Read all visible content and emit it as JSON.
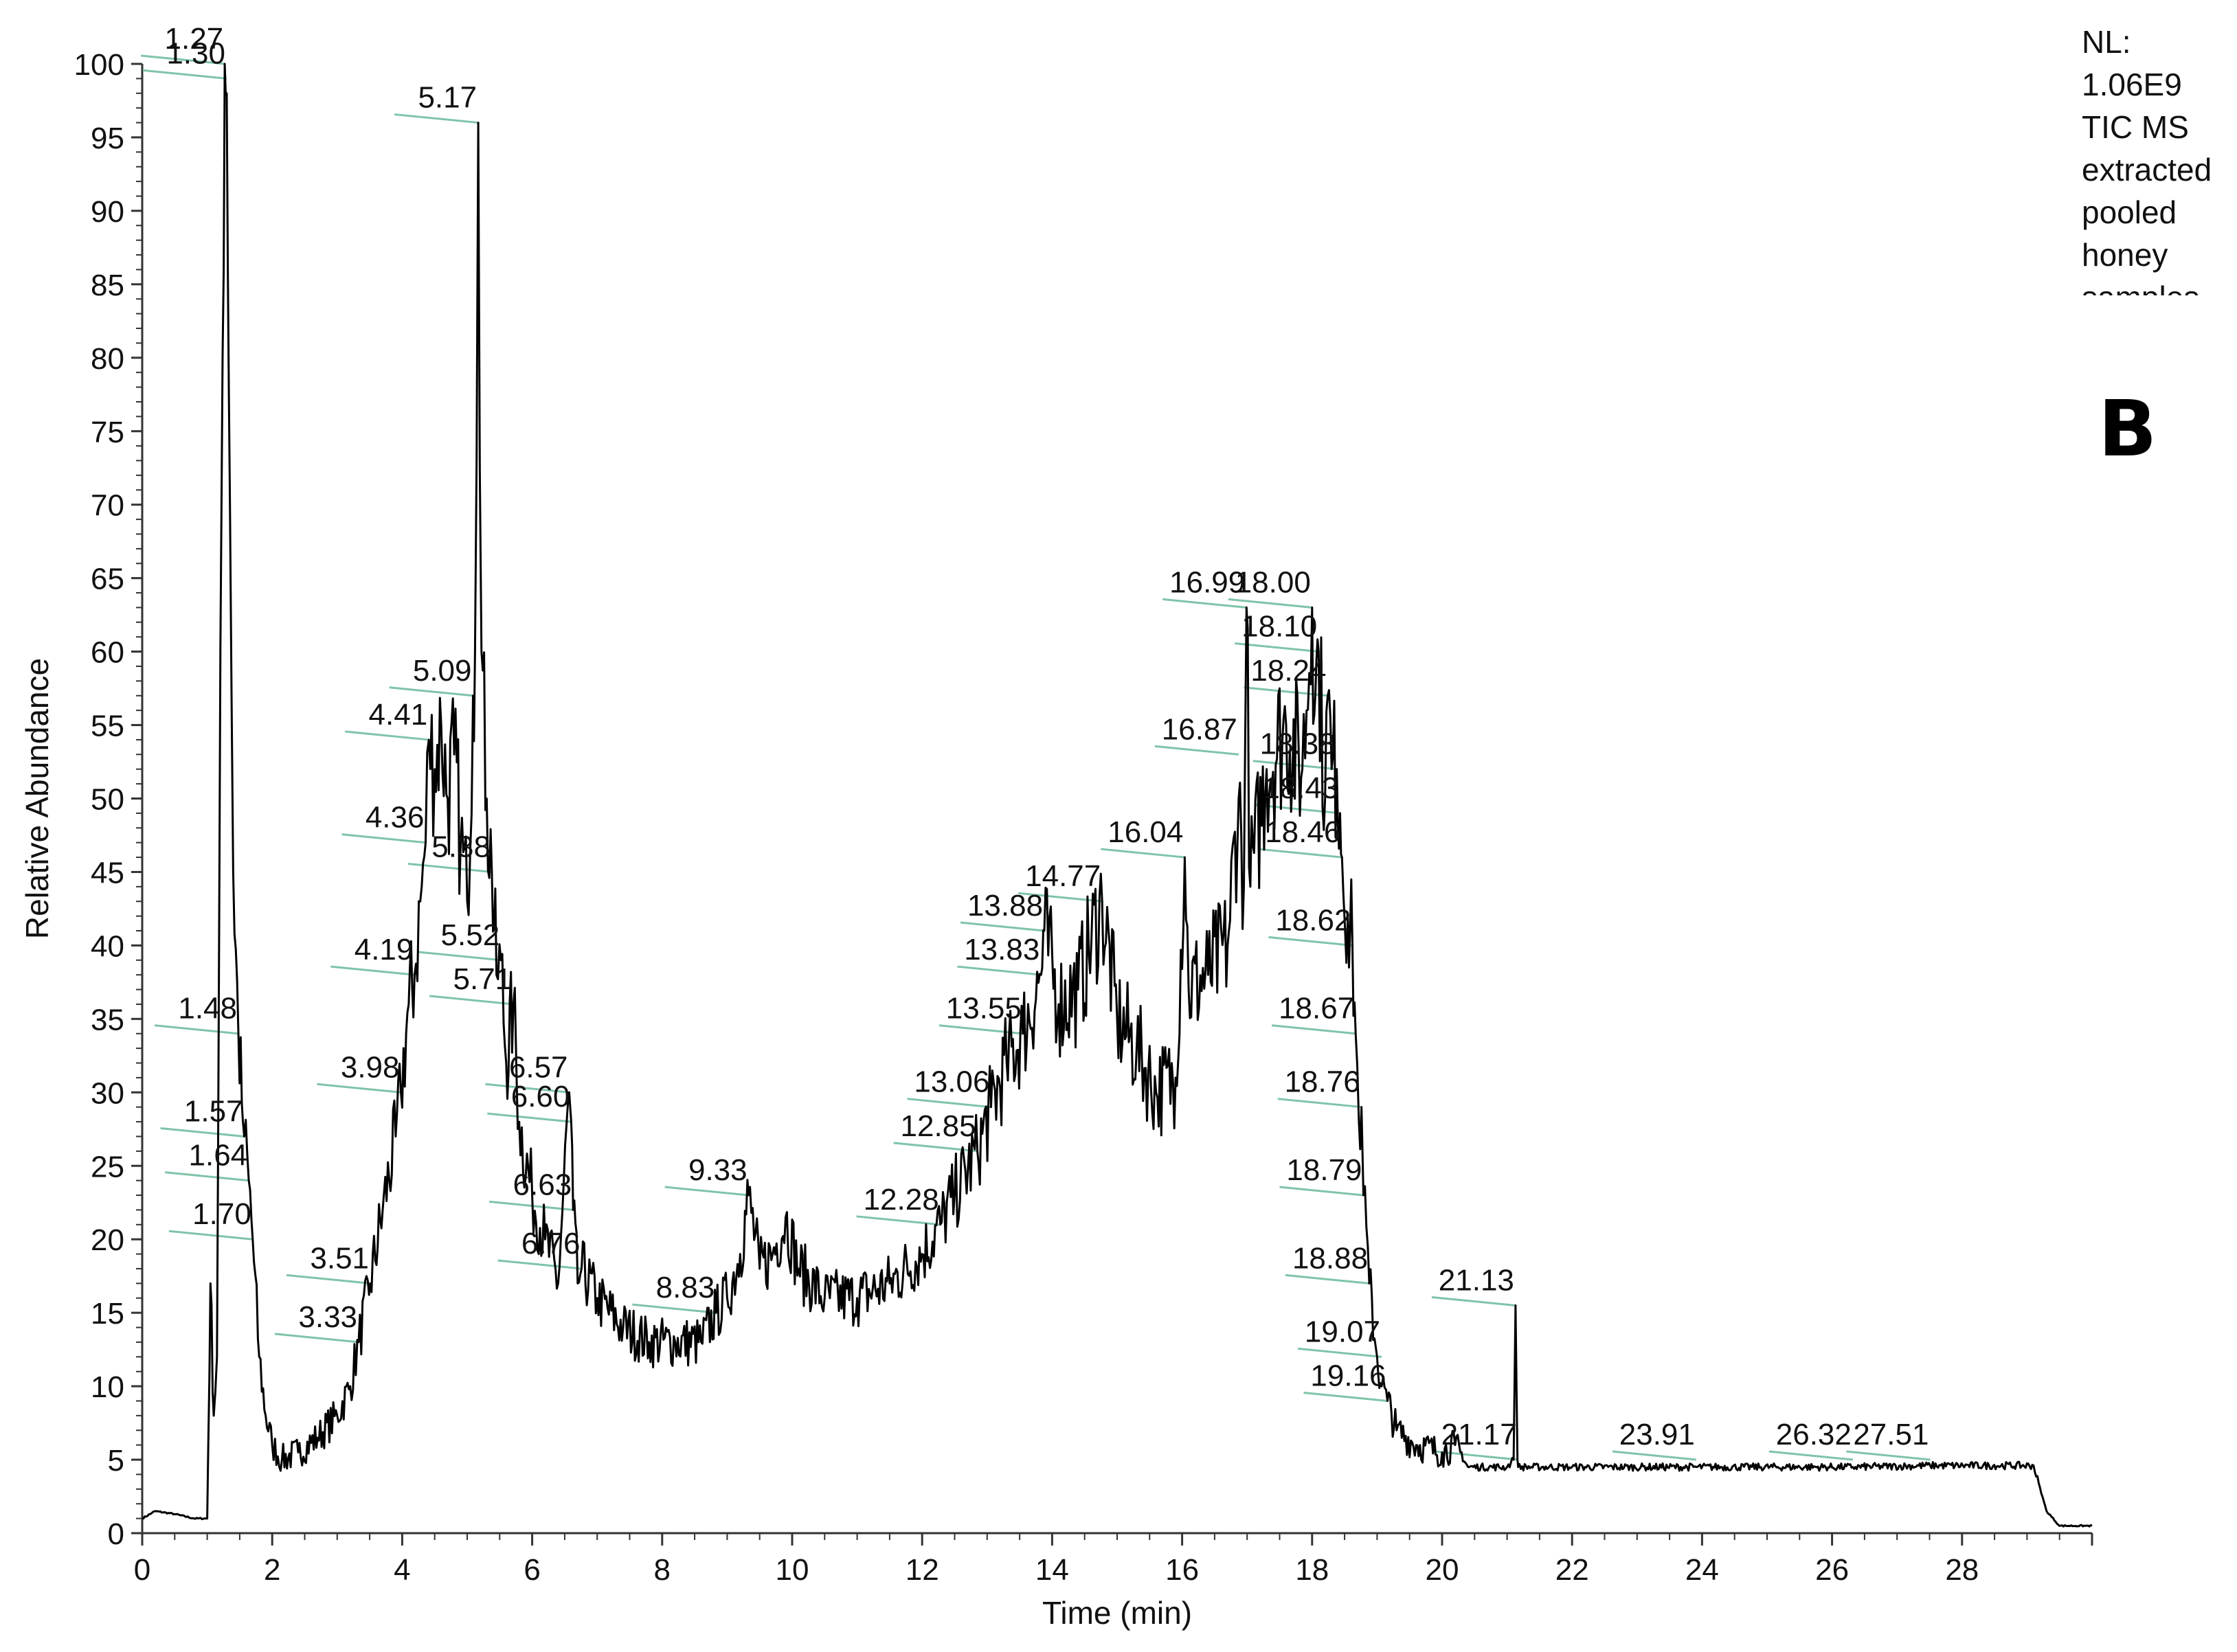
{
  "note": {
    "lines": [
      "NL:",
      "1.06E9",
      "TIC MS",
      "extracted",
      "pooled",
      "honey",
      "samples"
    ]
  },
  "panel_label": "B",
  "colors": {
    "trace": "#000000",
    "label_line": "#7fc4a8",
    "axis": "#333333",
    "text": "#111111"
  },
  "chart_data": {
    "type": "line",
    "xlabel": "Time (min)",
    "ylabel": "Relative Abundance",
    "xlim": [
      0,
      30
    ],
    "ylim": [
      0,
      100
    ],
    "x_ticks": [
      "0",
      "2",
      "4",
      "6",
      "8",
      "10",
      "12",
      "14",
      "16",
      "18",
      "20",
      "22",
      "24",
      "26",
      "28"
    ],
    "y_ticks": [
      "0",
      "5",
      "10",
      "15",
      "20",
      "25",
      "30",
      "35",
      "40",
      "45",
      "50",
      "55",
      "60",
      "65",
      "70",
      "75",
      "80",
      "85",
      "90",
      "95",
      "100"
    ],
    "grid": false,
    "series": [
      {
        "values": [
          [
            0,
            1
          ],
          [
            0.2,
            1.5
          ],
          [
            0.5,
            1.3
          ],
          [
            0.8,
            1.0
          ],
          [
            1.0,
            1.0
          ],
          [
            1.05,
            17
          ],
          [
            1.1,
            8
          ],
          [
            1.15,
            12
          ],
          [
            1.22,
            70
          ],
          [
            1.27,
            100
          ],
          [
            1.3,
            98
          ],
          [
            1.35,
            70
          ],
          [
            1.4,
            45
          ],
          [
            1.48,
            34
          ],
          [
            1.55,
            28
          ],
          [
            1.57,
            27
          ],
          [
            1.64,
            24
          ],
          [
            1.7,
            20
          ],
          [
            1.8,
            12
          ],
          [
            1.9,
            8
          ],
          [
            2.0,
            6
          ],
          [
            2.15,
            5
          ],
          [
            2.4,
            5.5
          ],
          [
            2.7,
            6.5
          ],
          [
            3.0,
            8
          ],
          [
            3.2,
            10
          ],
          [
            3.33,
            13
          ],
          [
            3.51,
            17
          ],
          [
            3.7,
            22
          ],
          [
            3.9,
            27
          ],
          [
            3.98,
            30
          ],
          [
            4.1,
            36
          ],
          [
            4.19,
            38
          ],
          [
            4.3,
            44
          ],
          [
            4.36,
            47
          ],
          [
            4.41,
            54
          ],
          [
            4.5,
            52
          ],
          [
            4.6,
            55
          ],
          [
            4.7,
            50
          ],
          [
            4.8,
            53
          ],
          [
            4.9,
            47
          ],
          [
            5.0,
            43
          ],
          [
            5.09,
            57
          ],
          [
            5.12,
            60
          ],
          [
            5.17,
            96
          ],
          [
            5.22,
            60
          ],
          [
            5.3,
            50
          ],
          [
            5.38,
            45
          ],
          [
            5.45,
            38
          ],
          [
            5.52,
            39
          ],
          [
            5.6,
            32
          ],
          [
            5.71,
            36
          ],
          [
            5.8,
            28
          ],
          [
            6.0,
            23
          ],
          [
            6.2,
            20
          ],
          [
            6.4,
            17
          ],
          [
            6.57,
            30
          ],
          [
            6.6,
            28
          ],
          [
            6.63,
            22
          ],
          [
            6.7,
            17
          ],
          [
            6.76,
            18
          ],
          [
            7.0,
            16
          ],
          [
            7.4,
            14
          ],
          [
            7.8,
            13
          ],
          [
            8.2,
            13
          ],
          [
            8.6,
            13
          ],
          [
            8.83,
            15
          ],
          [
            9.0,
            16
          ],
          [
            9.2,
            19
          ],
          [
            9.33,
            23
          ],
          [
            9.5,
            18
          ],
          [
            9.7,
            19
          ],
          [
            9.9,
            21.5
          ],
          [
            10.1,
            18
          ],
          [
            10.5,
            16
          ],
          [
            11.0,
            16
          ],
          [
            11.5,
            17
          ],
          [
            12.0,
            19
          ],
          [
            12.28,
            21
          ],
          [
            12.5,
            23
          ],
          [
            12.85,
            26
          ],
          [
            13.06,
            29
          ],
          [
            13.3,
            32
          ],
          [
            13.55,
            34
          ],
          [
            13.83,
            38
          ],
          [
            13.88,
            41
          ],
          [
            14.1,
            36
          ],
          [
            14.4,
            37
          ],
          [
            14.77,
            43
          ],
          [
            15.0,
            35
          ],
          [
            15.3,
            33
          ],
          [
            15.6,
            30
          ],
          [
            15.9,
            31
          ],
          [
            16.04,
            46
          ],
          [
            16.1,
            37
          ],
          [
            16.4,
            38
          ],
          [
            16.7,
            40
          ],
          [
            16.87,
            50
          ],
          [
            16.95,
            44
          ],
          [
            16.99,
            63
          ],
          [
            17.05,
            44
          ],
          [
            17.3,
            52
          ],
          [
            17.6,
            55
          ],
          [
            17.85,
            52
          ],
          [
            18.0,
            63
          ],
          [
            18.05,
            57
          ],
          [
            18.1,
            60
          ],
          [
            18.2,
            50
          ],
          [
            18.24,
            57
          ],
          [
            18.3,
            52
          ],
          [
            18.38,
            52
          ],
          [
            18.43,
            49
          ],
          [
            18.46,
            46
          ],
          [
            18.55,
            42
          ],
          [
            18.62,
            40
          ],
          [
            18.67,
            34
          ],
          [
            18.72,
            28
          ],
          [
            18.76,
            29
          ],
          [
            18.79,
            23
          ],
          [
            18.88,
            17
          ],
          [
            19.0,
            12
          ],
          [
            19.07,
            10
          ],
          [
            19.16,
            9
          ],
          [
            19.3,
            7
          ],
          [
            19.6,
            6
          ],
          [
            20.0,
            5.5
          ],
          [
            20.2,
            6
          ],
          [
            20.4,
            4.5
          ],
          [
            21.0,
            4.5
          ],
          [
            21.1,
            5
          ],
          [
            21.13,
            15.5
          ],
          [
            21.16,
            5
          ],
          [
            21.17,
            4.5
          ],
          [
            22.0,
            4.5
          ],
          [
            23.91,
            4.5
          ],
          [
            26.32,
            4.5
          ],
          [
            27.51,
            4.6
          ],
          [
            29.1,
            4.6
          ],
          [
            29.3,
            1.5
          ],
          [
            29.5,
            0.5
          ],
          [
            30.0,
            0.5
          ]
        ]
      }
    ],
    "annotations": [
      {
        "text": "1.27",
        "x": 1.27,
        "y": 100
      },
      {
        "text": "1.30",
        "x": 1.3,
        "y": 99
      },
      {
        "text": "5.17",
        "x": 5.17,
        "y": 96
      },
      {
        "text": "5.09",
        "x": 5.09,
        "y": 57
      },
      {
        "text": "4.41",
        "x": 4.41,
        "y": 54
      },
      {
        "text": "4.36",
        "x": 4.36,
        "y": 47
      },
      {
        "text": "5.38",
        "x": 5.38,
        "y": 45
      },
      {
        "text": "4.19",
        "x": 4.19,
        "y": 38
      },
      {
        "text": "5.52",
        "x": 5.52,
        "y": 39
      },
      {
        "text": "5.71",
        "x": 5.71,
        "y": 36
      },
      {
        "text": "1.48",
        "x": 1.48,
        "y": 34
      },
      {
        "text": "3.98",
        "x": 3.98,
        "y": 30
      },
      {
        "text": "6.57",
        "x": 6.57,
        "y": 30
      },
      {
        "text": "6.60",
        "x": 6.6,
        "y": 28
      },
      {
        "text": "1.57",
        "x": 1.57,
        "y": 27
      },
      {
        "text": "1.64",
        "x": 1.64,
        "y": 24
      },
      {
        "text": "1.70",
        "x": 1.7,
        "y": 20
      },
      {
        "text": "6.63",
        "x": 6.63,
        "y": 22
      },
      {
        "text": "9.33",
        "x": 9.33,
        "y": 23
      },
      {
        "text": "6.76",
        "x": 6.76,
        "y": 18
      },
      {
        "text": "3.51",
        "x": 3.51,
        "y": 17
      },
      {
        "text": "8.83",
        "x": 8.83,
        "y": 15
      },
      {
        "text": "3.33",
        "x": 3.33,
        "y": 13
      },
      {
        "text": "12.28",
        "x": 12.28,
        "y": 21
      },
      {
        "text": "12.85",
        "x": 12.85,
        "y": 26
      },
      {
        "text": "13.06",
        "x": 13.06,
        "y": 29
      },
      {
        "text": "13.55",
        "x": 13.55,
        "y": 34
      },
      {
        "text": "13.83",
        "x": 13.83,
        "y": 38
      },
      {
        "text": "13.88",
        "x": 13.88,
        "y": 41
      },
      {
        "text": "14.77",
        "x": 14.77,
        "y": 43
      },
      {
        "text": "16.04",
        "x": 16.04,
        "y": 46
      },
      {
        "text": "16.87",
        "x": 16.87,
        "y": 53
      },
      {
        "text": "16.99",
        "x": 16.99,
        "y": 63
      },
      {
        "text": "18.00",
        "x": 18.0,
        "y": 63
      },
      {
        "text": "18.10",
        "x": 18.1,
        "y": 60
      },
      {
        "text": "18.24",
        "x": 18.24,
        "y": 57
      },
      {
        "text": "18.38",
        "x": 18.38,
        "y": 52
      },
      {
        "text": "18.43",
        "x": 18.43,
        "y": 49
      },
      {
        "text": "18.46",
        "x": 18.46,
        "y": 46
      },
      {
        "text": "18.62",
        "x": 18.62,
        "y": 40
      },
      {
        "text": "18.67",
        "x": 18.67,
        "y": 34
      },
      {
        "text": "18.76",
        "x": 18.76,
        "y": 29
      },
      {
        "text": "18.79",
        "x": 18.79,
        "y": 23
      },
      {
        "text": "18.88",
        "x": 18.88,
        "y": 17
      },
      {
        "text": "19.07",
        "x": 19.07,
        "y": 12
      },
      {
        "text": "19.16",
        "x": 19.16,
        "y": 9
      },
      {
        "text": "21.13",
        "x": 21.13,
        "y": 15.5
      },
      {
        "text": "21.17",
        "x": 21.17,
        "y": 5
      },
      {
        "text": "23.91",
        "x": 23.91,
        "y": 5
      },
      {
        "text": "26.32",
        "x": 26.32,
        "y": 5
      },
      {
        "text": "27.51",
        "x": 27.51,
        "y": 5
      }
    ]
  }
}
